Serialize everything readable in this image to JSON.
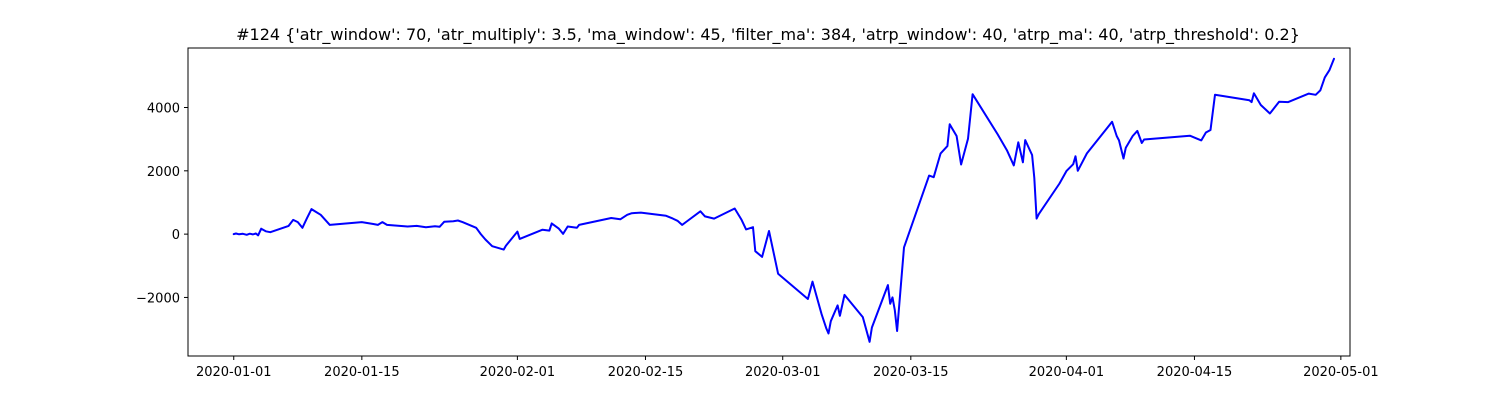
{
  "chart_data": {
    "type": "line",
    "title": "#124 {'atr_window': 70, 'atr_multiply': 3.5, 'ma_window': 45, 'filter_ma': 384, 'atrp_window': 40, 'atrp_ma': 40, 'atrp_threshold': 0.2}",
    "xlabel": "",
    "ylabel": "",
    "xlim": [
      "2019-12-27",
      "2020-05-02"
    ],
    "ylim": [
      -3850,
      5880
    ],
    "x_ticks": [
      "2020-01-01",
      "2020-01-15",
      "2020-02-01",
      "2020-02-15",
      "2020-03-01",
      "2020-03-15",
      "2020-04-01",
      "2020-04-15",
      "2020-05-01"
    ],
    "y_ticks": [
      -2000,
      0,
      2000,
      4000
    ],
    "y_tick_labels": [
      "−2000",
      "0",
      "2000",
      "4000"
    ],
    "grid": false,
    "legend": "none",
    "series": [
      {
        "color": "#0000ff",
        "points": [
          [
            "2020-01-01T00:00",
            0
          ],
          [
            "2020-01-01T06:00",
            20
          ],
          [
            "2020-01-01T14:00",
            -5
          ],
          [
            "2020-01-02T00:00",
            10
          ],
          [
            "2020-01-02T10:00",
            -20
          ],
          [
            "2020-01-02T18:00",
            15
          ],
          [
            "2020-01-03T02:00",
            -10
          ],
          [
            "2020-01-03T10:00",
            20
          ],
          [
            "2020-01-03T16:00",
            -40
          ],
          [
            "2020-01-04T00:00",
            170
          ],
          [
            "2020-01-04T12:00",
            90
          ],
          [
            "2020-01-05T00:00",
            60
          ],
          [
            "2020-01-07T00:00",
            260
          ],
          [
            "2020-01-07T12:00",
            450
          ],
          [
            "2020-01-08T00:00",
            380
          ],
          [
            "2020-01-08T12:00",
            200
          ],
          [
            "2020-01-09T00:00",
            500
          ],
          [
            "2020-01-09T12:00",
            790
          ],
          [
            "2020-01-10T00:00",
            700
          ],
          [
            "2020-01-10T12:00",
            610
          ],
          [
            "2020-01-11T12:00",
            290
          ],
          [
            "2020-01-15T00:00",
            380
          ],
          [
            "2020-01-16T06:00",
            320
          ],
          [
            "2020-01-16T18:00",
            290
          ],
          [
            "2020-01-17T06:00",
            380
          ],
          [
            "2020-01-17T18:00",
            290
          ],
          [
            "2020-01-20T00:00",
            240
          ],
          [
            "2020-01-21T00:00",
            260
          ],
          [
            "2020-01-22T00:00",
            220
          ],
          [
            "2020-01-23T00:00",
            250
          ],
          [
            "2020-01-23T12:00",
            230
          ],
          [
            "2020-01-24T00:00",
            390
          ],
          [
            "2020-01-25T00:00",
            410
          ],
          [
            "2020-01-25T12:00",
            430
          ],
          [
            "2020-01-26T00:00",
            380
          ],
          [
            "2020-01-27T12:00",
            200
          ],
          [
            "2020-01-28T00:00",
            0
          ],
          [
            "2020-01-28T12:00",
            -170
          ],
          [
            "2020-01-29T06:00",
            -380
          ],
          [
            "2020-01-30T12:00",
            -490
          ],
          [
            "2020-01-30T18:00",
            -370
          ],
          [
            "2020-02-01T00:00",
            80
          ],
          [
            "2020-02-01T06:00",
            -150
          ],
          [
            "2020-02-03T18:00",
            140
          ],
          [
            "2020-02-04T12:00",
            110
          ],
          [
            "2020-02-04T18:00",
            340
          ],
          [
            "2020-02-05T12:00",
            180
          ],
          [
            "2020-02-06T00:00",
            10
          ],
          [
            "2020-02-06T12:00",
            240
          ],
          [
            "2020-02-07T12:00",
            200
          ],
          [
            "2020-02-07T18:00",
            290
          ],
          [
            "2020-02-11T06:00",
            510
          ],
          [
            "2020-02-12T06:00",
            470
          ],
          [
            "2020-02-13T00:00",
            610
          ],
          [
            "2020-02-13T12:00",
            660
          ],
          [
            "2020-02-14T12:00",
            680
          ],
          [
            "2020-02-17T06:00",
            580
          ],
          [
            "2020-02-18T00:00",
            490
          ],
          [
            "2020-02-18T12:00",
            420
          ],
          [
            "2020-02-19T00:00",
            290
          ],
          [
            "2020-02-19T12:00",
            400
          ],
          [
            "2020-02-21T00:00",
            720
          ],
          [
            "2020-02-21T12:00",
            560
          ],
          [
            "2020-02-22T12:00",
            490
          ],
          [
            "2020-02-24T18:00",
            810
          ],
          [
            "2020-02-25T12:00",
            450
          ],
          [
            "2020-02-26T00:00",
            150
          ],
          [
            "2020-02-26T18:00",
            220
          ],
          [
            "2020-02-27T00:00",
            -540
          ],
          [
            "2020-02-27T18:00",
            -720
          ],
          [
            "2020-02-28T12:00",
            100
          ],
          [
            "2020-02-29T12:00",
            -1250
          ],
          [
            "2020-03-03T18:00",
            -2050
          ],
          [
            "2020-03-04T06:00",
            -1500
          ],
          [
            "2020-03-05T06:00",
            -2530
          ],
          [
            "2020-03-05T18:00",
            -2970
          ],
          [
            "2020-03-06T00:00",
            -3140
          ],
          [
            "2020-03-06T06:00",
            -2750
          ],
          [
            "2020-03-07T00:00",
            -2250
          ],
          [
            "2020-03-07T06:00",
            -2580
          ],
          [
            "2020-03-07T18:00",
            -1920
          ],
          [
            "2020-03-09T18:00",
            -2620
          ],
          [
            "2020-03-10T12:00",
            -3400
          ],
          [
            "2020-03-10T18:00",
            -2950
          ],
          [
            "2020-03-12T12:00",
            -1610
          ],
          [
            "2020-03-12T18:00",
            -2200
          ],
          [
            "2020-03-13T00:00",
            -2000
          ],
          [
            "2020-03-13T06:00",
            -2400
          ],
          [
            "2020-03-13T12:00",
            -3060
          ],
          [
            "2020-03-14T06:00",
            -420
          ],
          [
            "2020-03-17T00:00",
            1850
          ],
          [
            "2020-03-17T12:00",
            1800
          ],
          [
            "2020-03-18T06:00",
            2550
          ],
          [
            "2020-03-19T00:00",
            2780
          ],
          [
            "2020-03-19T06:00",
            3470
          ],
          [
            "2020-03-20T00:00",
            3100
          ],
          [
            "2020-03-20T12:00",
            2200
          ],
          [
            "2020-03-21T06:00",
            3010
          ],
          [
            "2020-03-21T18:00",
            4420
          ],
          [
            "2020-03-24T12:00",
            3150
          ],
          [
            "2020-03-25T12:00",
            2650
          ],
          [
            "2020-03-26T06:00",
            2170
          ],
          [
            "2020-03-26T18:00",
            2900
          ],
          [
            "2020-03-27T06:00",
            2270
          ],
          [
            "2020-03-27T12:00",
            2970
          ],
          [
            "2020-03-28T06:00",
            2500
          ],
          [
            "2020-03-28T12:00",
            1780
          ],
          [
            "2020-03-28T18:00",
            490
          ],
          [
            "2020-03-29T00:00",
            640
          ],
          [
            "2020-03-31T06:00",
            1600
          ],
          [
            "2020-04-01T00:00",
            1990
          ],
          [
            "2020-04-01T18:00",
            2210
          ],
          [
            "2020-04-02T00:00",
            2460
          ],
          [
            "2020-04-02T06:00",
            2000
          ],
          [
            "2020-04-03T06:00",
            2550
          ],
          [
            "2020-04-06T00:00",
            3550
          ],
          [
            "2020-04-06T12:00",
            3100
          ],
          [
            "2020-04-06T18:00",
            2960
          ],
          [
            "2020-04-07T06:00",
            2390
          ],
          [
            "2020-04-07T12:00",
            2730
          ],
          [
            "2020-04-08T06:00",
            3100
          ],
          [
            "2020-04-08T18:00",
            3260
          ],
          [
            "2020-04-09T06:00",
            2880
          ],
          [
            "2020-04-09T12:00",
            2990
          ],
          [
            "2020-04-14T12:00",
            3110
          ],
          [
            "2020-04-15T18:00",
            2960
          ],
          [
            "2020-04-16T06:00",
            3210
          ],
          [
            "2020-04-16T18:00",
            3290
          ],
          [
            "2020-04-17T06:00",
            4400
          ],
          [
            "2020-04-21T00:00",
            4230
          ],
          [
            "2020-04-21T06:00",
            4170
          ],
          [
            "2020-04-21T12:00",
            4450
          ],
          [
            "2020-04-22T06:00",
            4080
          ],
          [
            "2020-04-23T06:00",
            3810
          ],
          [
            "2020-04-24T06:00",
            4180
          ],
          [
            "2020-04-25T06:00",
            4170
          ],
          [
            "2020-04-27T12:00",
            4440
          ],
          [
            "2020-04-28T06:00",
            4400
          ],
          [
            "2020-04-28T18:00",
            4540
          ],
          [
            "2020-04-29T06:00",
            4950
          ],
          [
            "2020-04-29T18:00",
            5180
          ],
          [
            "2020-04-30T06:00",
            5540
          ]
        ]
      }
    ]
  }
}
